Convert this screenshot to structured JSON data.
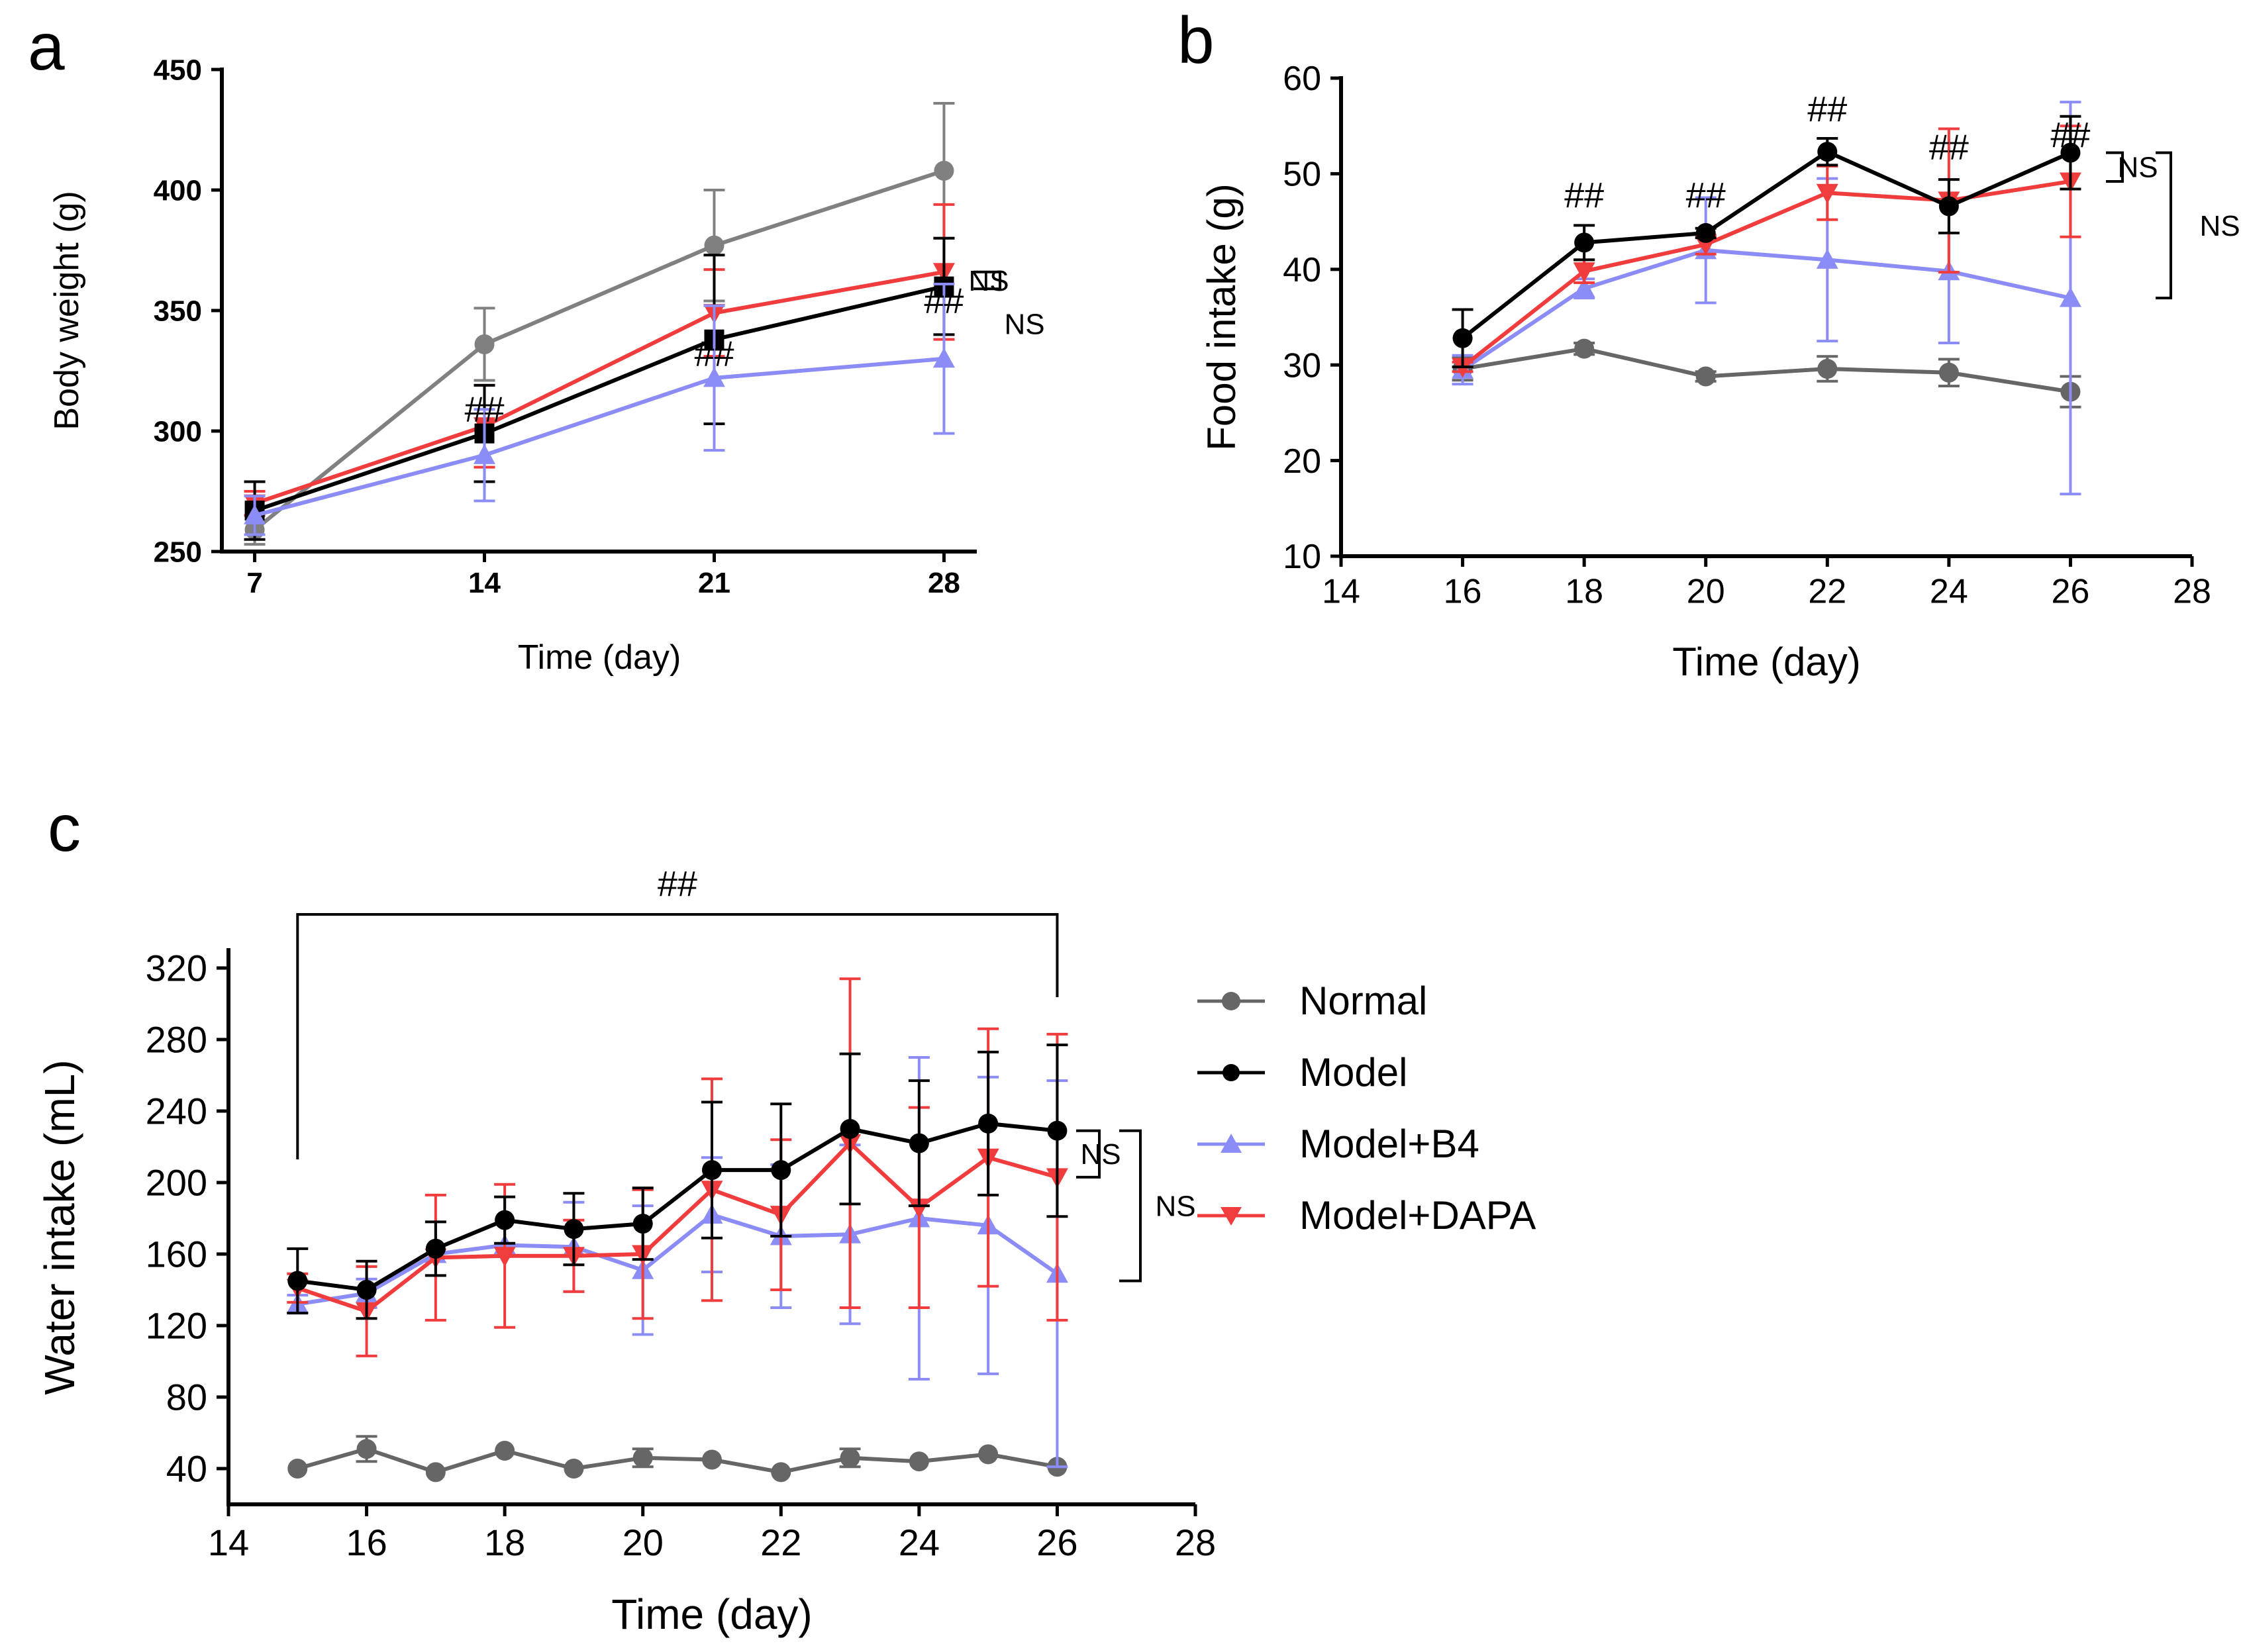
{
  "legend": {
    "position": "right of panel c",
    "items": [
      {
        "label": "Normal",
        "color": "#666666",
        "marker": "circle"
      },
      {
        "label": "Model",
        "color": "#000000",
        "marker": "circle"
      },
      {
        "label": "Model+B4",
        "color": "#8c8cf7",
        "marker": "triangle-up"
      },
      {
        "label": "Model+DAPA",
        "color": "#f03c3c",
        "marker": "triangle-down"
      }
    ]
  },
  "chart_data": [
    {
      "panel": "a",
      "type": "line",
      "xlabel": "Time (day)",
      "ylabel": "Body weight (g)",
      "xlim": [
        6,
        29
      ],
      "ylim": [
        250,
        450
      ],
      "xticks": [
        "7",
        "14",
        "21",
        "28"
      ],
      "yticks": [
        "250",
        "300",
        "350",
        "400",
        "450"
      ],
      "x": [
        7,
        14,
        21,
        28
      ],
      "series": [
        {
          "name": "Normal",
          "color": "#808080",
          "marker": "circle",
          "values": [
            259,
            336,
            377,
            408
          ],
          "errors": [
            6,
            15,
            23,
            28
          ]
        },
        {
          "name": "Model+DAPA",
          "color": "#f03c3c",
          "marker": "triangle-down",
          "values": [
            270,
            302,
            349,
            366
          ],
          "errors": [
            5,
            17,
            18,
            28
          ]
        },
        {
          "name": "Model",
          "color": "#000000",
          "marker": "square",
          "values": [
            267,
            299,
            338,
            360
          ],
          "errors": [
            12,
            20,
            35,
            20
          ]
        },
        {
          "name": "Model+B4",
          "color": "#8c8cf7",
          "marker": "triangle-up",
          "values": [
            265,
            290,
            322,
            330
          ],
          "errors": [
            8,
            19,
            30,
            31
          ]
        }
      ],
      "annotations": [
        {
          "text": "##",
          "x": 14,
          "y": 304
        },
        {
          "text": "##",
          "x": 21,
          "y": 327
        },
        {
          "text": "##",
          "x": 28,
          "y": 349
        }
      ],
      "brackets": [
        {
          "text": "NS",
          "between": [
            "Model+DAPA",
            "Model"
          ],
          "y_range": [
            359,
            366
          ]
        },
        {
          "text": "NS",
          "between": [
            "Model",
            "Model+B4"
          ],
          "y_range": [
            330,
            359
          ]
        }
      ]
    },
    {
      "panel": "b",
      "type": "line",
      "xlabel": "Time (day)",
      "ylabel": "Food intake (g)",
      "xlim": [
        14,
        28
      ],
      "ylim": [
        10,
        60
      ],
      "xticks": [
        "14",
        "16",
        "18",
        "20",
        "22",
        "24",
        "26",
        "28"
      ],
      "yticks": [
        "10",
        "20",
        "30",
        "40",
        "50",
        "60"
      ],
      "x": [
        16,
        18,
        20,
        22,
        24,
        26
      ],
      "series": [
        {
          "name": "Normal",
          "color": "#666666",
          "marker": "circle",
          "values": [
            29.6,
            31.7,
            28.8,
            29.6,
            29.2,
            27.2
          ],
          "errors": [
            1.2,
            0.6,
            0.5,
            1.3,
            1.4,
            1.6
          ]
        },
        {
          "name": "Model+B4",
          "color": "#8c8cf7",
          "marker": "triangle-up",
          "values": [
            29.5,
            38.0,
            42.0,
            41.0,
            39.8,
            37.0
          ],
          "errors": [
            1.5,
            1.0,
            5.5,
            8.5,
            7.5,
            20.5
          ]
        },
        {
          "name": "Model+DAPA",
          "color": "#f03c3c",
          "marker": "triangle-down",
          "values": [
            29.8,
            39.8,
            42.6,
            48.0,
            47.2,
            49.2
          ],
          "errors": [
            0.5,
            1.2,
            1.0,
            2.8,
            7.5,
            5.8
          ]
        },
        {
          "name": "Model",
          "color": "#000000",
          "marker": "circle",
          "values": [
            32.8,
            42.8,
            43.8,
            52.3,
            46.6,
            52.2
          ],
          "errors": [
            3.0,
            1.8,
            0.5,
            1.4,
            2.8,
            3.8
          ]
        }
      ],
      "annotations": [
        {
          "text": "##",
          "x": 18,
          "y": 46.5
        },
        {
          "text": "##",
          "x": 20,
          "y": 46.5
        },
        {
          "text": "##",
          "x": 22,
          "y": 55.5
        },
        {
          "text": "##",
          "x": 24,
          "y": 51.5
        },
        {
          "text": "##",
          "x": 26,
          "y": 52.8
        }
      ],
      "brackets": [
        {
          "text": "NS",
          "between": [
            "Model",
            "Model+DAPA"
          ],
          "y_range": [
            49.2,
            52.2
          ]
        },
        {
          "text": "NS",
          "between": [
            "Model",
            "Model+B4"
          ],
          "y_range": [
            37.0,
            52.2
          ]
        }
      ]
    },
    {
      "panel": "c",
      "type": "line",
      "xlabel": "Time (day)",
      "ylabel": "Water intake (mL)",
      "xlim": [
        14,
        28
      ],
      "ylim": [
        20,
        330
      ],
      "xticks": [
        "14",
        "16",
        "18",
        "20",
        "22",
        "24",
        "26",
        "28"
      ],
      "yticks": [
        "40",
        "80",
        "120",
        "160",
        "200",
        "240",
        "280",
        "320"
      ],
      "x": [
        15,
        16,
        17,
        18,
        19,
        20,
        21,
        22,
        23,
        24,
        25,
        26
      ],
      "series": [
        {
          "name": "Normal",
          "color": "#666666",
          "marker": "circle",
          "values": [
            40,
            51,
            38,
            50,
            40,
            46,
            45,
            38,
            46,
            44,
            48,
            41
          ],
          "errors": [
            0,
            7,
            0,
            0,
            0,
            5,
            0,
            0,
            5,
            0,
            0,
            0
          ]
        },
        {
          "name": "Model+B4",
          "color": "#8c8cf7",
          "marker": "triangle-up",
          "values": [
            132,
            138,
            160,
            165,
            164,
            151,
            182,
            170,
            171,
            180,
            176,
            149
          ],
          "errors": [
            5,
            8,
            0,
            0,
            25,
            36,
            32,
            40,
            50,
            90,
            83,
            108
          ]
        },
        {
          "name": "Model+DAPA",
          "color": "#f03c3c",
          "marker": "triangle-down",
          "values": [
            141,
            128,
            158,
            159,
            159,
            160,
            196,
            182,
            222,
            186,
            214,
            203
          ],
          "errors": [
            8,
            25,
            35,
            40,
            20,
            36,
            62,
            42,
            92,
            56,
            72,
            80
          ]
        },
        {
          "name": "Model",
          "color": "#000000",
          "marker": "circle",
          "values": [
            145,
            140,
            163,
            179,
            174,
            177,
            207,
            207,
            230,
            222,
            233,
            229
          ],
          "errors": [
            18,
            16,
            15,
            13,
            20,
            20,
            38,
            37,
            42,
            35,
            40,
            48
          ]
        }
      ],
      "annotations": [
        {
          "text": "##",
          "bracket_x": [
            15,
            26
          ],
          "y": 350
        }
      ],
      "brackets": [
        {
          "text": "NS",
          "between": [
            "Model",
            "Model+DAPA"
          ],
          "y_range": [
            203,
            229
          ]
        },
        {
          "text": "NS",
          "between": [
            "Model",
            "Model+B4"
          ],
          "y_range": [
            145,
            229
          ]
        }
      ]
    }
  ],
  "panel_labels": [
    "a",
    "b",
    "c"
  ]
}
